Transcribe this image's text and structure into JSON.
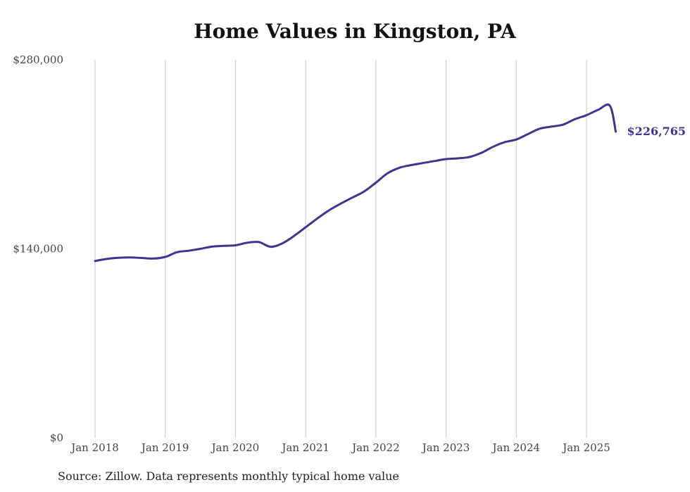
{
  "chart_data": {
    "type": "line",
    "title": "Home Values in Kingston, PA",
    "xlabel": "",
    "ylabel": "",
    "x_ticks": [
      "Jan 2018",
      "Jan 2019",
      "Jan 2020",
      "Jan 2021",
      "Jan 2022",
      "Jan 2023",
      "Jan 2024",
      "Jan 2025"
    ],
    "y_ticks": [
      "$0",
      "$140,000",
      "$280,000"
    ],
    "y_tick_values": [
      0,
      140000,
      280000
    ],
    "ylim": [
      0,
      280000
    ],
    "grid": "vertical",
    "line_color": "#3d3590",
    "series": [
      {
        "x": [
          "2018-01",
          "2018-03",
          "2018-05",
          "2018-07",
          "2018-09",
          "2018-11",
          "2019-01",
          "2019-03",
          "2019-05",
          "2019-07",
          "2019-09",
          "2019-11",
          "2020-01",
          "2020-03",
          "2020-05",
          "2020-07",
          "2020-09",
          "2020-11",
          "2021-01",
          "2021-03",
          "2021-05",
          "2021-07",
          "2021-09",
          "2021-11",
          "2022-01",
          "2022-03",
          "2022-05",
          "2022-07",
          "2022-09",
          "2022-11",
          "2023-01",
          "2023-03",
          "2023-05",
          "2023-07",
          "2023-09",
          "2023-11",
          "2024-01",
          "2024-03",
          "2024-05",
          "2024-07",
          "2024-09",
          "2024-11",
          "2025-01",
          "2025-03",
          "2025-05",
          "2025-06"
        ],
        "values": [
          131000,
          132500,
          133300,
          133600,
          133200,
          132800,
          134000,
          137500,
          138600,
          140000,
          141600,
          142200,
          142600,
          144500,
          145000,
          141500,
          144000,
          149500,
          156000,
          162500,
          168500,
          173500,
          178000,
          182500,
          189000,
          196000,
          200000,
          202000,
          203500,
          205000,
          206500,
          207000,
          208000,
          211000,
          215500,
          219000,
          221000,
          225000,
          229000,
          230500,
          232000,
          236000,
          239000,
          243000,
          246000,
          226765
        ]
      }
    ],
    "end_label": "$226,765"
  },
  "source_note": "Source: Zillow. Data represents monthly typical home value"
}
